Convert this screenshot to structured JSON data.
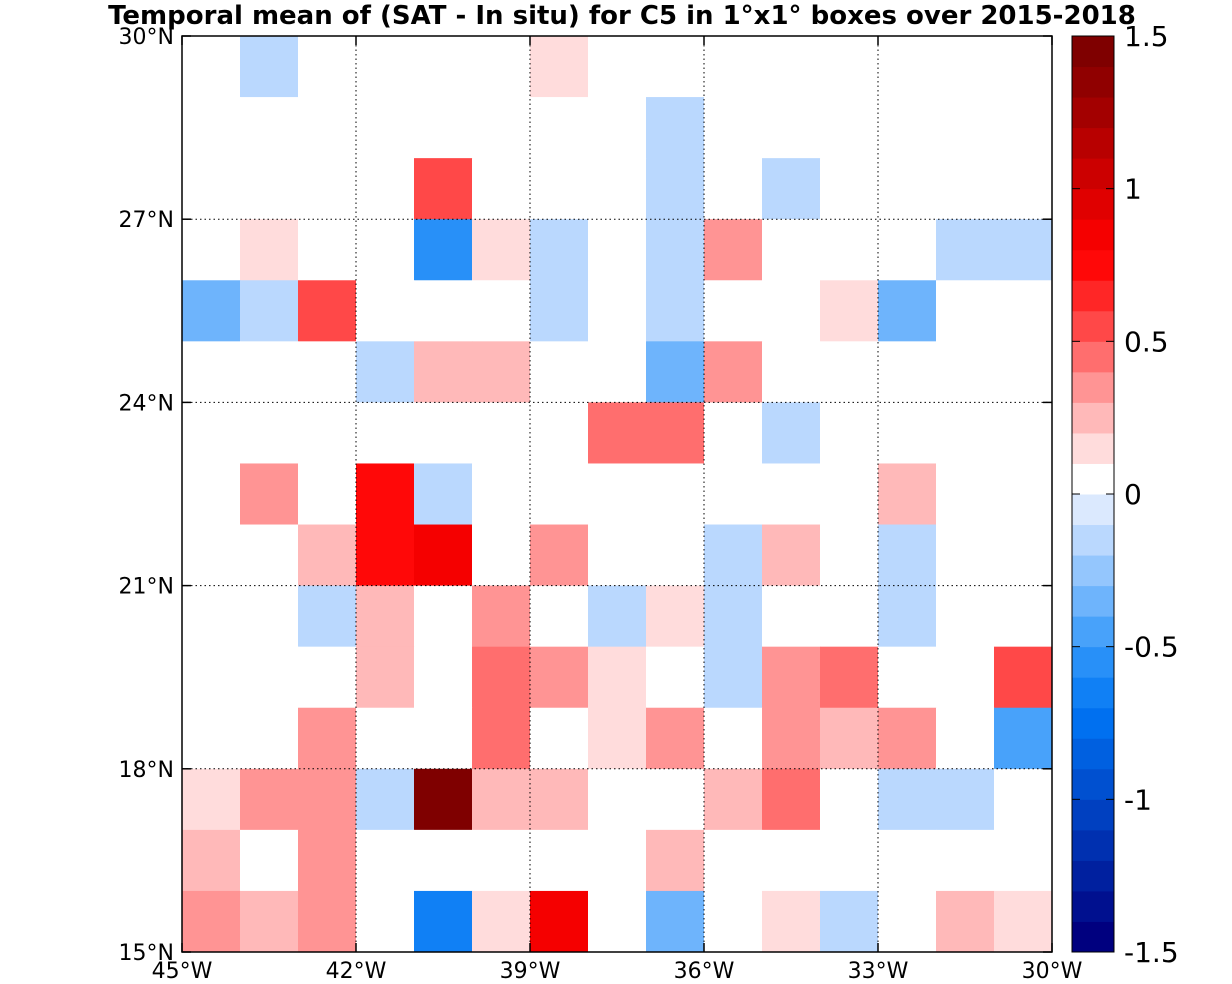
{
  "chart_data": {
    "type": "heatmap",
    "title": "Temporal mean of (SAT - In situ) for C5 in 1°x1° boxes over 2015-2018",
    "x_tick_labels": [
      "45°W",
      "42°W",
      "39°W",
      "36°W",
      "33°W",
      "30°W"
    ],
    "y_tick_labels": [
      "15°N",
      "18°N",
      "21°N",
      "24°N",
      "27°N",
      "30°N"
    ],
    "xlim": [
      -45,
      -30
    ],
    "ylim": [
      15,
      30
    ],
    "x_ticks": [
      -45,
      -42,
      -39,
      -36,
      -33,
      -30
    ],
    "y_ticks": [
      15,
      18,
      21,
      24,
      27,
      30
    ],
    "cell_size_deg": 1,
    "grid": true,
    "colorbar": {
      "range": [
        -1.5,
        1.5
      ],
      "levels": 30,
      "tick_values": [
        -1.5,
        -1,
        -0.5,
        0,
        0.5,
        1,
        1.5
      ],
      "tick_labels": [
        "-1.5",
        "-1",
        "-0.5",
        "0",
        "0.5",
        "1",
        "1.5"
      ],
      "location": "right",
      "colors": [
        "#00007f",
        "#00108f",
        "#00209f",
        "#0030b0",
        "#0040c0",
        "#0050d0",
        "#0060e0",
        "#0070f0",
        "#1080f5",
        "#2890f8",
        "#48a2fa",
        "#6eb4fc",
        "#94c6fd",
        "#bad8fe",
        "#dbe9fe",
        "#ffffff",
        "#ffdcdc",
        "#ffb9b9",
        "#ff9494",
        "#ff6e6e",
        "#ff4848",
        "#ff2626",
        "#ff0808",
        "#f50000",
        "#e00000",
        "#cc0000",
        "#b80000",
        "#a30000",
        "#900000",
        "#7f0000"
      ]
    },
    "rows": [
      {
        "lat": 29.5,
        "values": [
          0,
          -0.1,
          0,
          0,
          0,
          0,
          0.1,
          0,
          0,
          0,
          0,
          0,
          0,
          0,
          0
        ]
      },
      {
        "lat": 28.5,
        "values": [
          0,
          0,
          0,
          0,
          0,
          0,
          0,
          0,
          -0.1,
          0,
          0,
          0,
          0,
          0,
          0
        ]
      },
      {
        "lat": 27.5,
        "values": [
          0,
          0,
          0,
          0,
          0.55,
          0,
          0,
          0,
          -0.2,
          0,
          -0.2,
          0,
          0,
          0,
          0
        ]
      },
      {
        "lat": 26.5,
        "values": [
          0,
          0.1,
          0,
          0,
          -0.55,
          0.1,
          -0.1,
          0,
          -0.2,
          0.35,
          0,
          0,
          0,
          -0.1,
          -0.2
        ]
      },
      {
        "lat": 25.5,
        "values": [
          -0.3,
          -0.2,
          0.55,
          0,
          0,
          0,
          -0.1,
          0,
          -0.1,
          0,
          0,
          0.1,
          -0.35,
          0,
          0
        ]
      },
      {
        "lat": 24.5,
        "values": [
          0,
          0,
          0,
          -0.1,
          0.2,
          0.2,
          0,
          0,
          -0.35,
          0.35,
          0,
          0,
          0,
          0,
          0
        ]
      },
      {
        "lat": 23.5,
        "values": [
          0,
          0,
          0,
          0,
          0,
          0,
          0,
          0.45,
          0.45,
          0,
          -0.1,
          0,
          0,
          0,
          0
        ]
      },
      {
        "lat": 22.5,
        "values": [
          0,
          0.35,
          0,
          0.7,
          -0.1,
          0,
          0,
          0,
          0,
          0,
          0,
          0,
          0.2,
          0,
          0
        ]
      },
      {
        "lat": 21.5,
        "values": [
          0,
          0,
          0.2,
          0.7,
          0.8,
          0,
          0.35,
          0,
          0,
          -0.1,
          0.2,
          0,
          -0.2,
          0,
          0
        ]
      },
      {
        "lat": 20.5,
        "values": [
          0,
          0,
          -0.1,
          0.2,
          0,
          0.35,
          0,
          -0.2,
          0.1,
          -0.1,
          0,
          0,
          -0.1,
          0,
          0
        ]
      },
      {
        "lat": 19.5,
        "values": [
          0,
          0,
          0,
          0.2,
          0,
          0.45,
          0.35,
          0.1,
          0,
          -0.2,
          0.35,
          0.45,
          0,
          0,
          0.55
        ]
      },
      {
        "lat": 18.5,
        "values": [
          0,
          0,
          0.35,
          0,
          0,
          0.45,
          0,
          0.1,
          0.35,
          0,
          0.35,
          0.2,
          0.35,
          0,
          -0.45
        ]
      },
      {
        "lat": 17.5,
        "values": [
          0.1,
          0.35,
          0.35,
          -0.1,
          1.5,
          0.2,
          0.2,
          0,
          0,
          0.2,
          0.45,
          0,
          -0.2,
          -0.1,
          0
        ]
      },
      {
        "lat": 16.5,
        "values": [
          0.2,
          0,
          0.35,
          0,
          0,
          0,
          0,
          0,
          0.2,
          0,
          0,
          0,
          0,
          0,
          0
        ]
      },
      {
        "lat": 15.5,
        "values": [
          0.35,
          0.2,
          0.35,
          0,
          -0.65,
          0.1,
          0.8,
          0,
          -0.3,
          0,
          0.1,
          -0.2,
          0,
          0.2,
          0.1
        ]
      }
    ],
    "lon_centers": [
      -44.5,
      -43.5,
      -42.5,
      -41.5,
      -40.5,
      -39.5,
      -38.5,
      -37.5,
      -36.5,
      -35.5,
      -34.5,
      -33.5,
      -32.5,
      -31.5,
      -30.5
    ]
  }
}
